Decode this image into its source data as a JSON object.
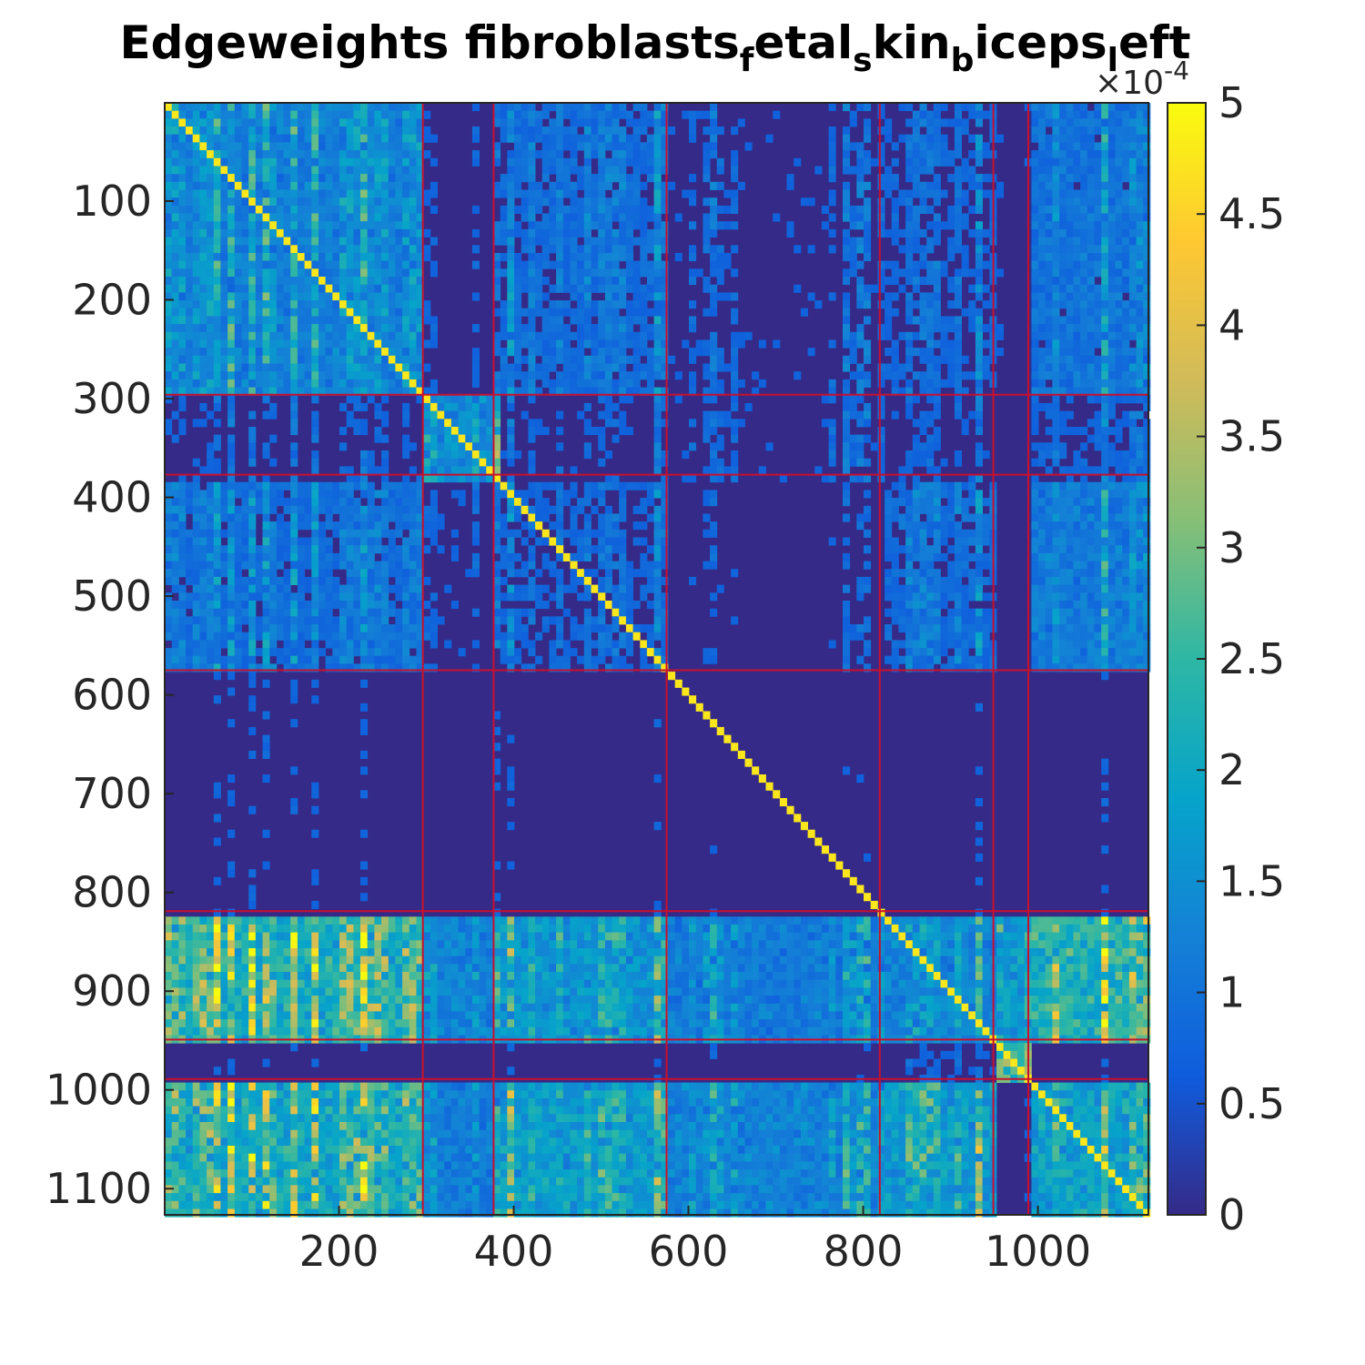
{
  "chart_data": {
    "type": "heatmap",
    "title": {
      "parts": [
        {
          "text": "Edgeweights fibroblasts",
          "sub": false
        },
        {
          "text": "f",
          "sub": true
        },
        {
          "text": "etal",
          "sub": false
        },
        {
          "text": "s",
          "sub": true
        },
        {
          "text": "kin",
          "sub": false
        },
        {
          "text": "b",
          "sub": true
        },
        {
          "text": "iceps",
          "sub": false
        },
        {
          "text": "l",
          "sub": true
        },
        {
          "text": "eft",
          "sub": false
        }
      ]
    },
    "matrix_size": 1126,
    "xlim": [
      0.5,
      1126.5
    ],
    "ylim": [
      0.5,
      1126.5
    ],
    "y_reversed": true,
    "xticks": [
      200,
      400,
      600,
      800,
      1000
    ],
    "yticks": [
      100,
      200,
      300,
      400,
      500,
      600,
      700,
      800,
      900,
      1000,
      1100
    ],
    "color_limits": [
      0,
      0.0005
    ],
    "colormap": "parula",
    "colorbar": {
      "location": "right",
      "ticks": [
        0,
        0.5,
        1,
        1.5,
        2,
        2.5,
        3,
        3.5,
        4,
        4.5,
        5
      ],
      "tick_labels": [
        "0",
        "0.5",
        "1",
        "1.5",
        "2",
        "2.5",
        "3",
        "3.5",
        "4",
        "4.5",
        "5"
      ],
      "multiplier": {
        "base": "×10",
        "exponent": "-4"
      }
    },
    "cluster_boundaries": [
      296,
      377,
      575,
      819,
      949,
      989
    ],
    "cluster_boundary_color": "#c8102e",
    "colors": {
      "parula_stops": [
        "#352a87",
        "#0f5cdd",
        "#1481d6",
        "#06a4ca",
        "#2eb7a4",
        "#87bf77",
        "#d1bb59",
        "#fec832",
        "#f9fb0e"
      ]
    }
  }
}
